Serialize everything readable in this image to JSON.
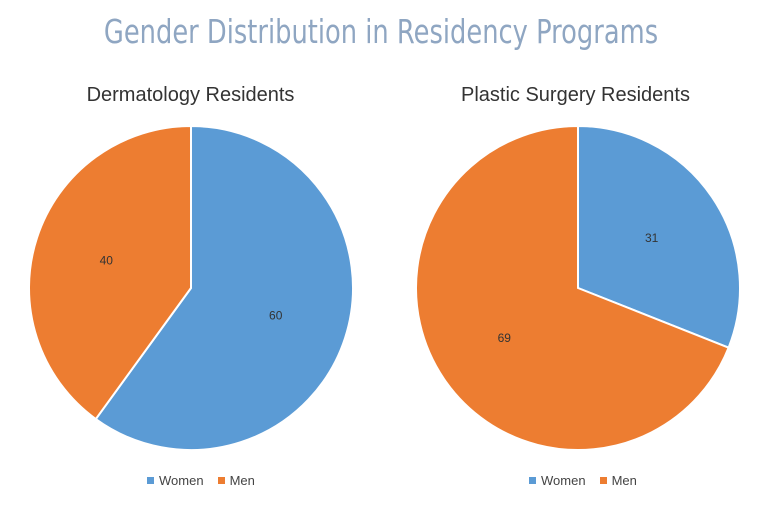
{
  "title": "Gender Distribution in Residency Programs",
  "colors": {
    "women": "#5b9bd5",
    "men": "#ed7d31"
  },
  "chart_data": [
    {
      "type": "pie",
      "title": "Dermatology Residents",
      "categories": [
        "Women",
        "Men"
      ],
      "values": [
        60,
        40
      ],
      "legend": "bottom"
    },
    {
      "type": "pie",
      "title": "Plastic Surgery Residents",
      "categories": [
        "Women",
        "Men"
      ],
      "values": [
        31,
        69
      ],
      "legend": "bottom"
    }
  ]
}
